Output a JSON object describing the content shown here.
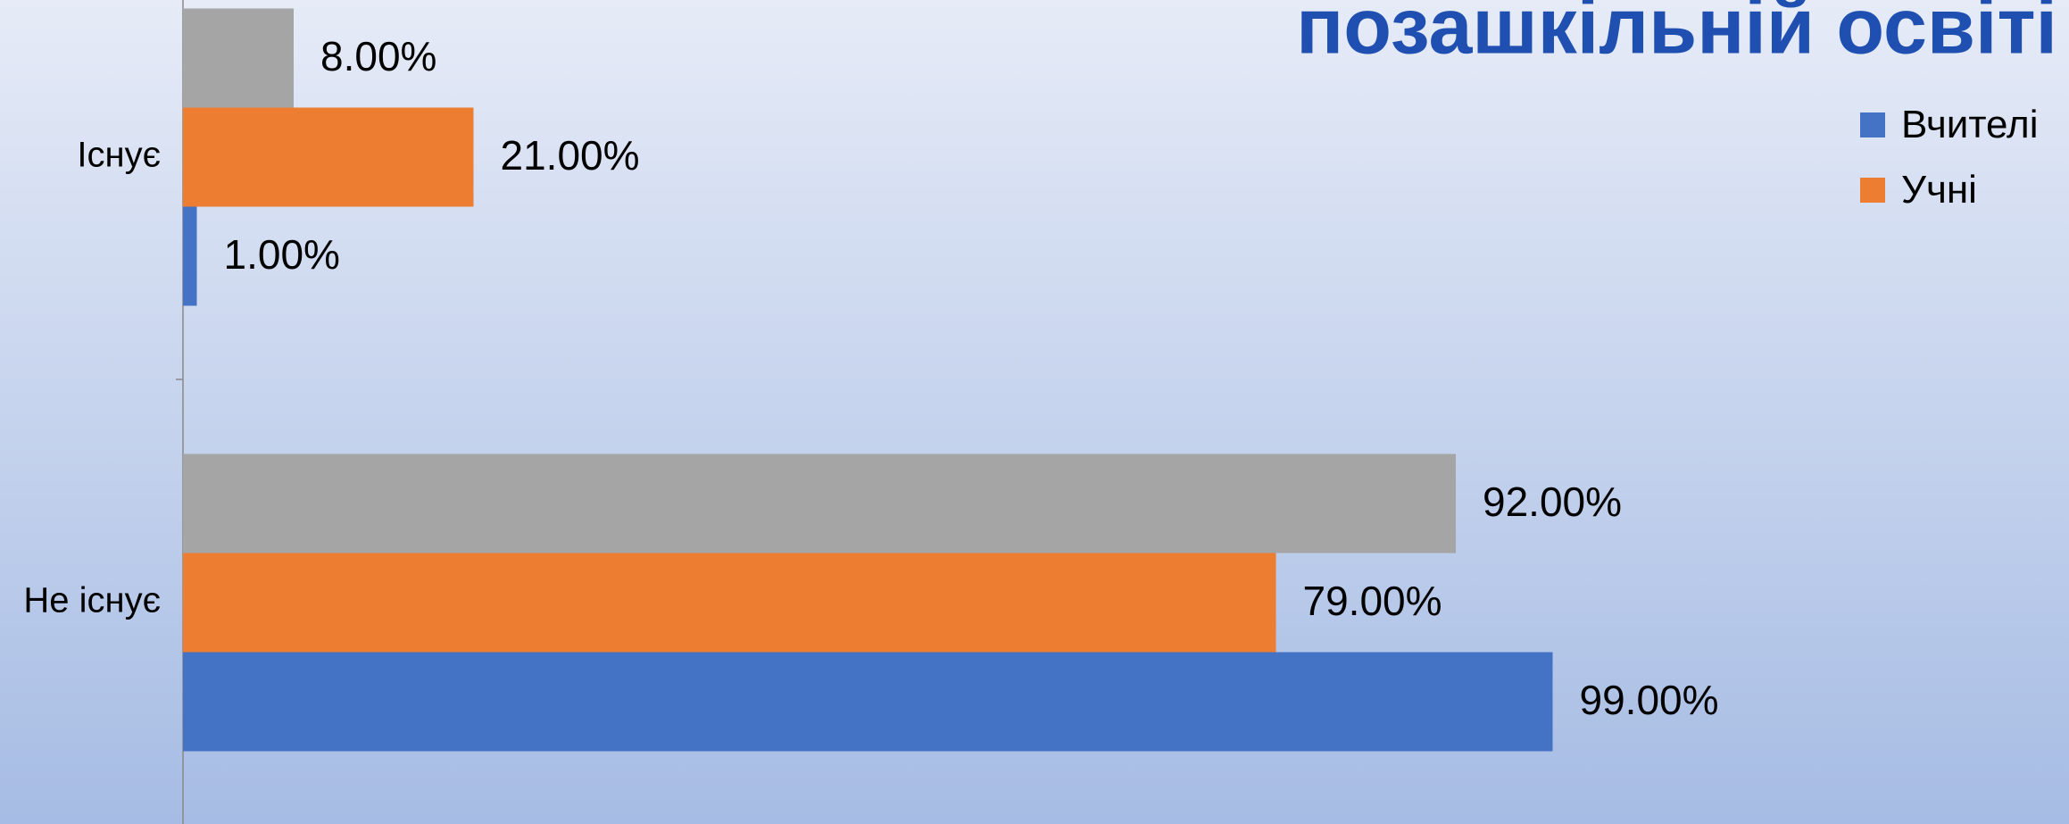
{
  "chart_data": {
    "type": "bar",
    "orientation": "horizontal",
    "title": "позашкільній освіті",
    "categories": [
      "Існує",
      "Не існує"
    ],
    "series": [
      {
        "name": "Вчителі",
        "color": "#4472c4",
        "values": [
          1,
          99
        ],
        "value_labels": [
          "1.00%",
          "99.00%"
        ]
      },
      {
        "name": "Учні",
        "color": "#ed7d31",
        "values": [
          21,
          79
        ],
        "value_labels": [
          "21.00%",
          "79.00%"
        ]
      },
      {
        "color": "#a5a5a5",
        "values": [
          8,
          92
        ],
        "value_labels": [
          "8.00%",
          "92.00%"
        ]
      }
    ],
    "xlim": [
      0,
      100
    ],
    "legend": "right"
  }
}
